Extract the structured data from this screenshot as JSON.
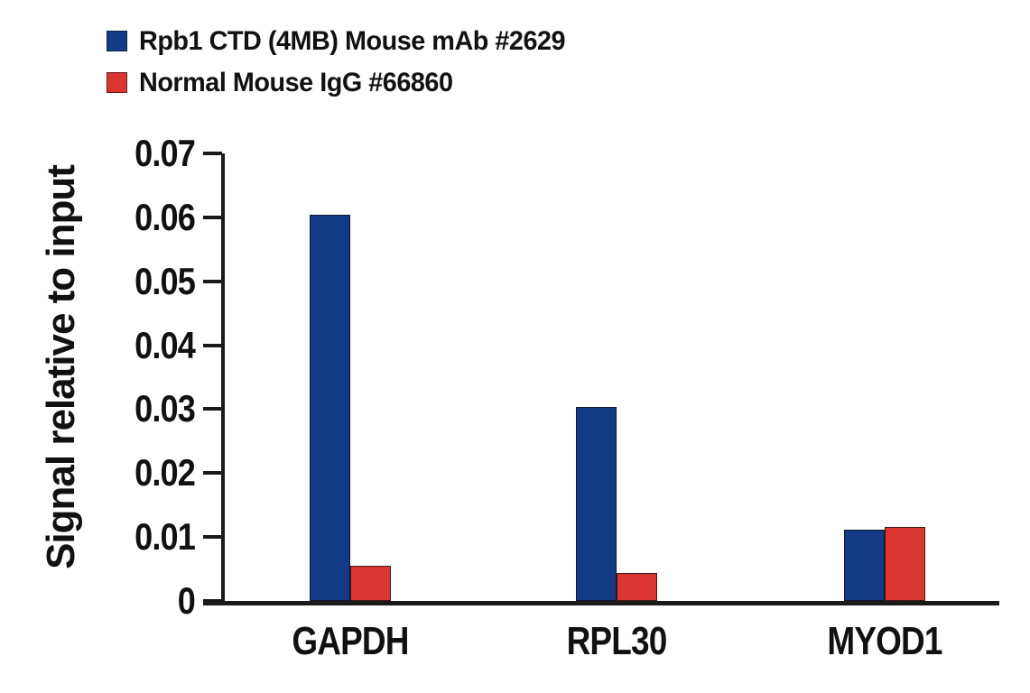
{
  "legend": {
    "items": [
      {
        "label": "Rpb1 CTD (4MB) Mouse mAb #2629",
        "color": "#123a85",
        "swatch_name": "blue-square-swatch"
      },
      {
        "label": "Normal Mouse IgG #66860",
        "color": "#d93531",
        "swatch_name": "red-square-swatch"
      }
    ]
  },
  "chart_data": {
    "type": "bar",
    "title": "",
    "xlabel": "",
    "ylabel": "Signal relative to input",
    "categories": [
      "GAPDH",
      "RPL30",
      "MYOD1"
    ],
    "series": [
      {
        "name": "Rpb1 CTD (4MB) Mouse mAb #2629",
        "color": "#123a85",
        "values": [
          0.0604,
          0.0304,
          0.0111
        ]
      },
      {
        "name": "Normal Mouse IgG #66860",
        "color": "#d93531",
        "values": [
          0.0055,
          0.0044,
          0.0116
        ]
      }
    ],
    "ylim": [
      0,
      0.07
    ],
    "yticks": [
      0,
      0.01,
      0.02,
      0.03,
      0.04,
      0.05,
      0.06,
      0.07
    ],
    "ytick_labels": [
      "0",
      "0.01",
      "0.02",
      "0.03",
      "0.04",
      "0.05",
      "0.06",
      "0.07"
    ],
    "grid": false,
    "legend_position": "top-left",
    "axis_color": "#1a1a1a"
  }
}
